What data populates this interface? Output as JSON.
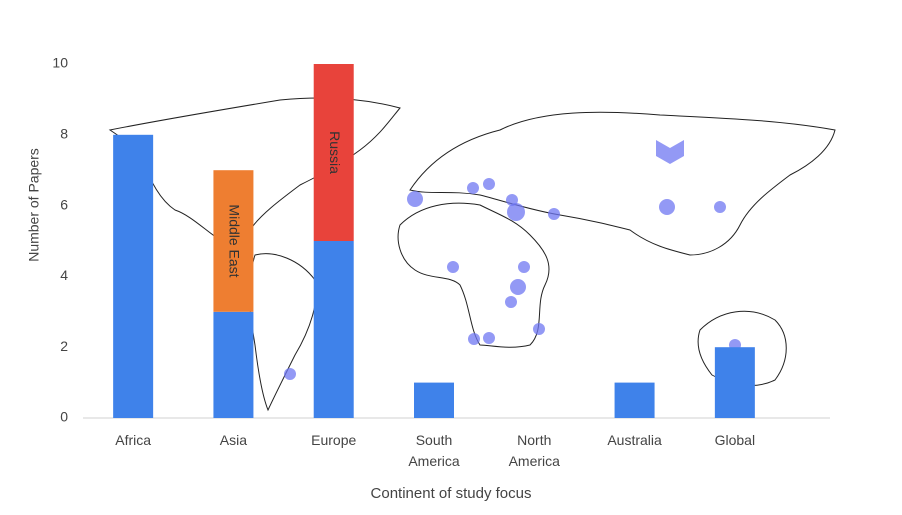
{
  "chart_data": {
    "type": "bar",
    "stacked": true,
    "x_label": "Continent of study focus",
    "y_label": "Number of Papers",
    "categories": [
      "Africa",
      "Asia",
      "Europe",
      "South America",
      "North America",
      "Australia",
      "Global"
    ],
    "series": [
      {
        "color": "#3f82ea",
        "values": [
          8,
          3,
          5,
          1,
          0,
          1,
          2
        ]
      },
      {
        "name": "Middle East",
        "color": "#ee7e31",
        "values": [
          null,
          4,
          null,
          null,
          null,
          null,
          null
        ]
      },
      {
        "name": "Russia",
        "color": "#e8433b",
        "values": [
          null,
          null,
          5,
          null,
          null,
          null,
          null
        ]
      }
    ],
    "ylim": [
      0,
      10
    ],
    "yticks": [
      0,
      2,
      4,
      6,
      8,
      10
    ],
    "grid": false
  }
}
